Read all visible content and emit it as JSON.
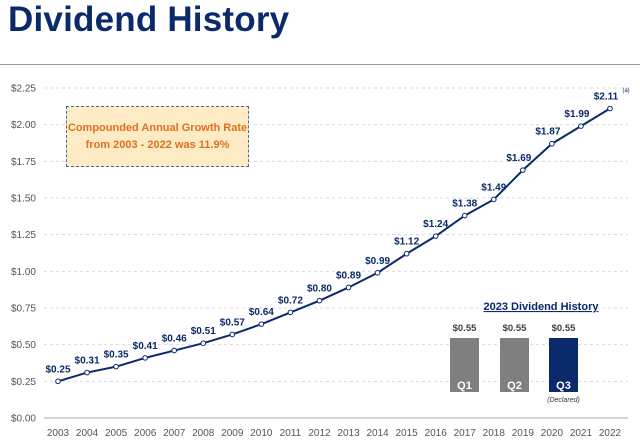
{
  "header": {
    "title": "Dividend History"
  },
  "callout": {
    "line1": "Compounded Annual Growth Rate",
    "line2": "from 2003 - 2022 was 11.9%"
  },
  "chart_data": [
    {
      "type": "line",
      "x": [
        "2003",
        "2004",
        "2005",
        "2006",
        "2007",
        "2008",
        "2009",
        "2010",
        "2011",
        "2012",
        "2013",
        "2014",
        "2015",
        "2016",
        "2017",
        "2018",
        "2019",
        "2020",
        "2021",
        "2022"
      ],
      "values": [
        0.25,
        0.31,
        0.35,
        0.41,
        0.46,
        0.51,
        0.57,
        0.64,
        0.72,
        0.8,
        0.89,
        0.99,
        1.12,
        1.24,
        1.38,
        1.49,
        1.69,
        1.87,
        1.99,
        2.11
      ],
      "data_labels": [
        "$0.25",
        "$0.31",
        "$0.35",
        "$0.41",
        "$0.46",
        "$0.51",
        "$0.57",
        "$0.64",
        "$0.72",
        "$0.80",
        "$0.89",
        "$0.99",
        "$1.12",
        "$1.24",
        "$1.38",
        "$1.49",
        "$1.69",
        "$1.87",
        "$1.99",
        "$2.11"
      ],
      "footnote_marker": "(a)",
      "yticks": [
        "$0.00",
        "$0.25",
        "$0.50",
        "$0.75",
        "$1.00",
        "$1.25",
        "$1.50",
        "$1.75",
        "$2.00",
        "$2.25"
      ],
      "ylim": [
        0,
        2.25
      ],
      "grid": true,
      "color": "#0a2a6b"
    },
    {
      "type": "bar",
      "title": "2023 Dividend History",
      "categories": [
        "Q1",
        "Q2",
        "Q3"
      ],
      "values": [
        0.55,
        0.55,
        0.55
      ],
      "data_labels": [
        "$0.55",
        "$0.55",
        "$0.55"
      ],
      "annotations": [
        "",
        "",
        "(Declared)"
      ],
      "colors": [
        "#7f7f7f",
        "#7f7f7f",
        "#0a2a6b"
      ]
    }
  ]
}
